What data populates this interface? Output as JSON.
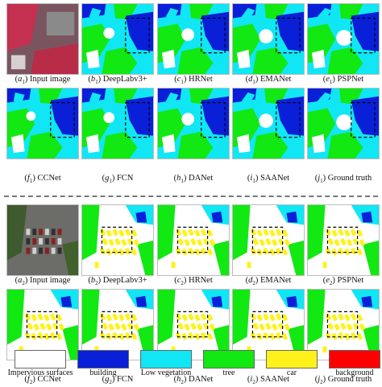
{
  "legend": [
    {
      "label": "Impervious surfaces",
      "color": "#ffffff"
    },
    {
      "label": "building",
      "color": "#0a1fd8"
    },
    {
      "label": "Low vegetation",
      "color": "#10e6f4"
    },
    {
      "label": "tree",
      "color": "#12e812"
    },
    {
      "label": "car",
      "color": "#fff21a"
    },
    {
      "label": "background",
      "color": "#ff0000"
    }
  ],
  "panels": [
    {
      "letter": "a",
      "sub": "1",
      "label": "Input image"
    },
    {
      "letter": "b",
      "sub": "1",
      "label": "DeepLabv3+"
    },
    {
      "letter": "c",
      "sub": "1",
      "label": "HRNet"
    },
    {
      "letter": "d",
      "sub": "1",
      "label": "EMANet"
    },
    {
      "letter": "e",
      "sub": "1",
      "label": "PSPNet"
    },
    {
      "letter": "f",
      "sub": "1",
      "label": "CCNet"
    },
    {
      "letter": "g",
      "sub": "1",
      "label": "FCN"
    },
    {
      "letter": "h",
      "sub": "1",
      "label": "DANet"
    },
    {
      "letter": "i",
      "sub": "1",
      "label": "SAANet"
    },
    {
      "letter": "j",
      "sub": "1",
      "label": "Ground truth"
    },
    {
      "letter": "a",
      "sub": "2",
      "label": "Input image"
    },
    {
      "letter": "b",
      "sub": "2",
      "label": "DeepLabv3+"
    },
    {
      "letter": "c",
      "sub": "2",
      "label": "HRNet"
    },
    {
      "letter": "d",
      "sub": "2",
      "label": "EMANet"
    },
    {
      "letter": "e",
      "sub": "2",
      "label": "PSPNet"
    },
    {
      "letter": "f",
      "sub": "2",
      "label": "CCNet"
    },
    {
      "letter": "g",
      "sub": "2",
      "label": "FCN"
    },
    {
      "letter": "h",
      "sub": "2",
      "label": "DANet"
    },
    {
      "letter": "i",
      "sub": "2",
      "label": "SAANet"
    },
    {
      "letter": "j",
      "sub": "2",
      "label": "Ground truth"
    }
  ]
}
